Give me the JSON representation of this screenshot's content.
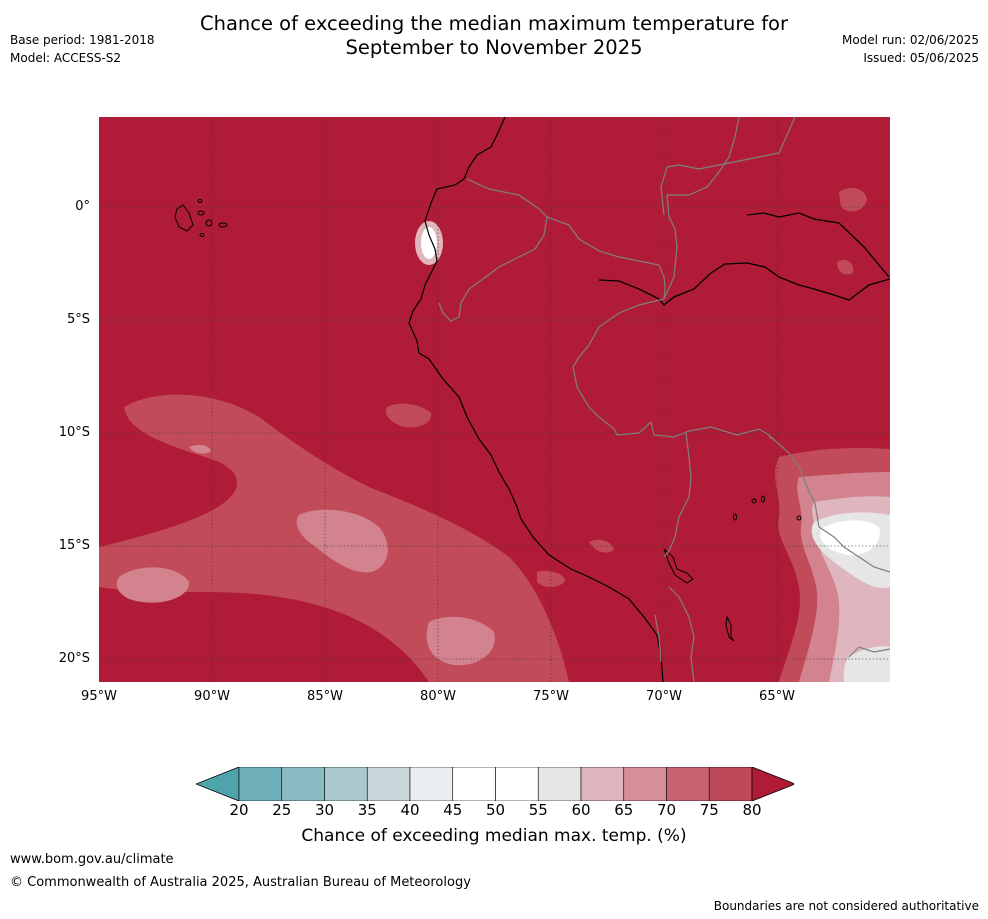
{
  "title": {
    "line1": "Chance of exceeding the median maximum temperature for",
    "line2": "September to November 2025"
  },
  "meta": {
    "base_period": "Base period: 1981-2018",
    "model": "Model: ACCESS-S2",
    "model_run": "Model run: 02/06/2025",
    "issued": "Issued: 05/06/2025"
  },
  "map": {
    "background_color": "#b01c37",
    "lat_labels": [
      "0°",
      "5°S",
      "10°S",
      "15°S",
      "20°S"
    ],
    "lon_labels": [
      "95°W",
      "90°W",
      "85°W",
      "80°W",
      "75°W",
      "70°W",
      "65°W"
    ],
    "grid_style": "dotted"
  },
  "colorbar": {
    "ticks": [
      "20",
      "25",
      "30",
      "35",
      "40",
      "45",
      "50",
      "55",
      "60",
      "65",
      "70",
      "75",
      "80"
    ],
    "colors": [
      "#4ea3ad",
      "#6daeb9",
      "#8cbac4",
      "#aac9ce",
      "#c9d8da",
      "#e8eef0",
      "#ffffff",
      "#ffffff",
      "#e6e6e7",
      "#dfb6bd",
      "#d48f98",
      "#c86472",
      "#be4a59",
      "#b01c37"
    ],
    "label": "Chance of exceeding median max. temp. (%)"
  },
  "footer": {
    "website": "www.bom.gov.au/climate",
    "copyright": "© Commonwealth of Australia 2025, Australian Bureau of Meteorology",
    "disclaimer": "Boundaries are not considered authoritative"
  }
}
